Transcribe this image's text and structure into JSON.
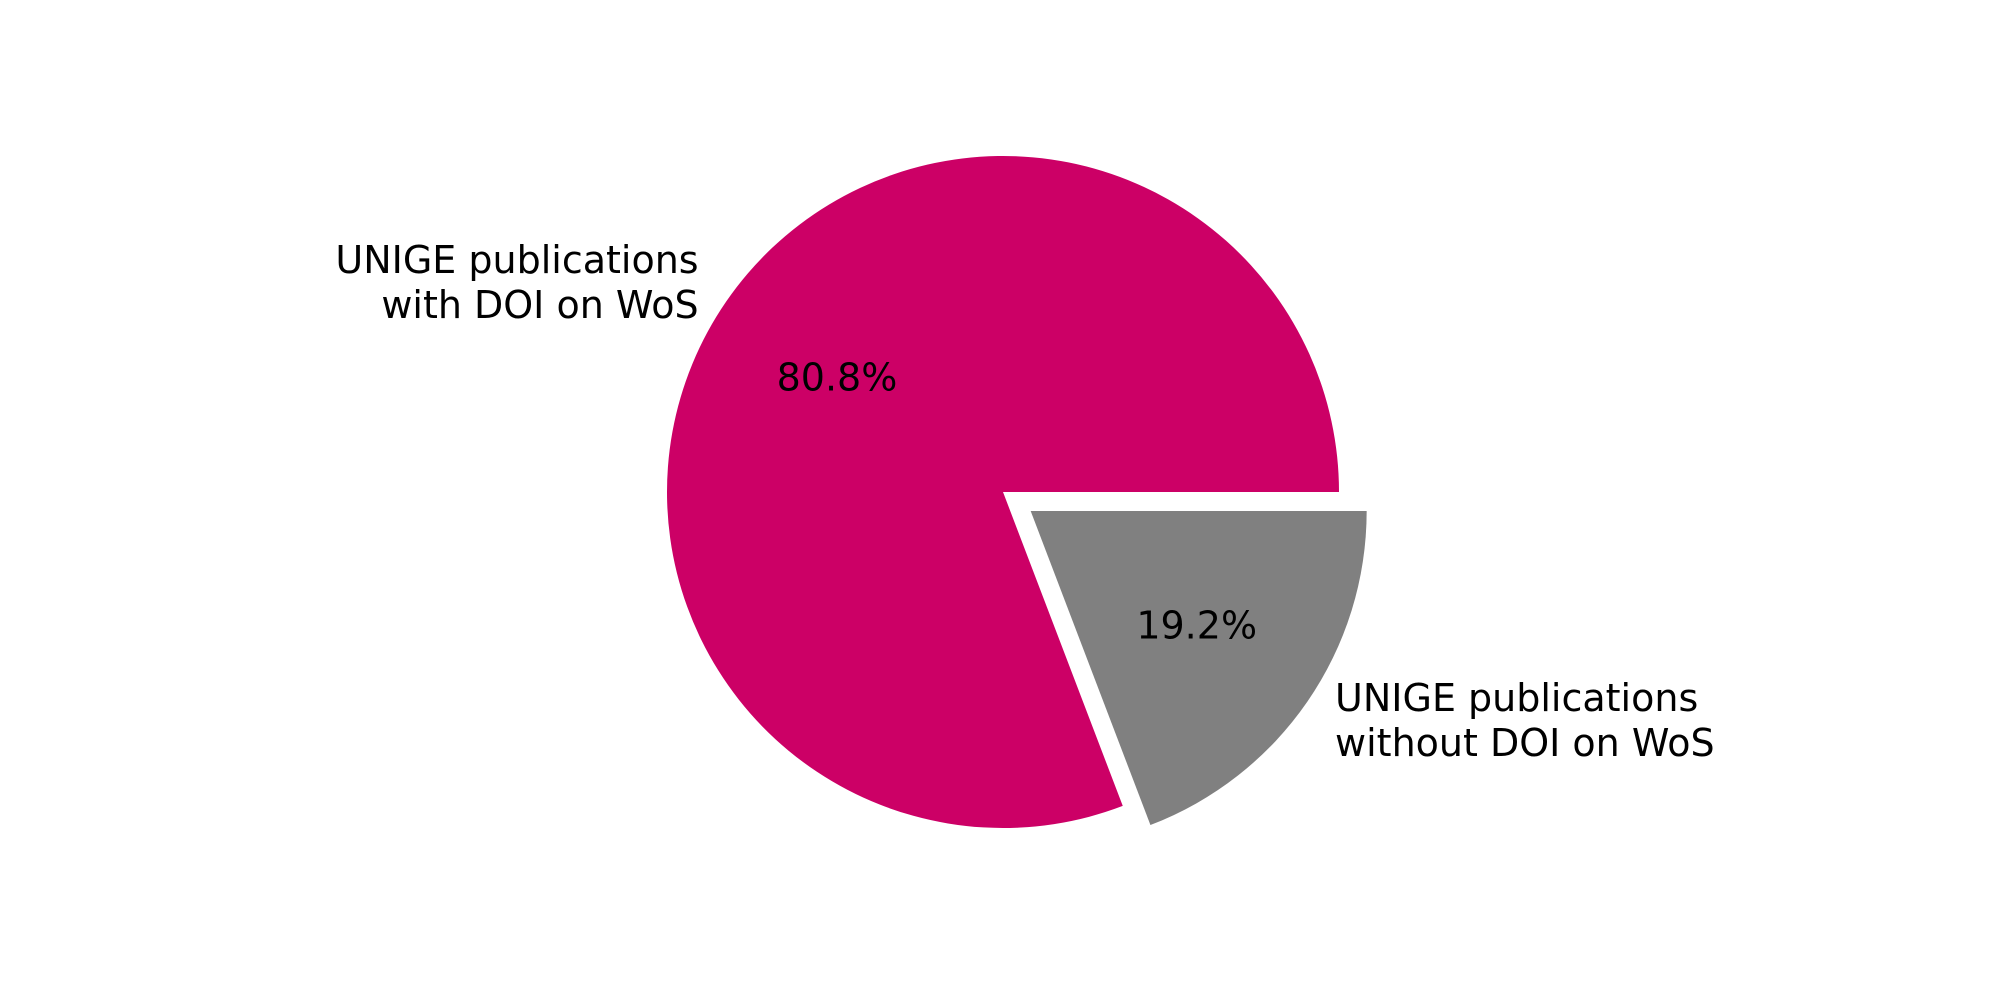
{
  "chart_data": {
    "type": "pie",
    "title": "",
    "slices": [
      {
        "label_lines": [
          "UNIGE publications",
          "with DOI on WoS"
        ],
        "value": 80.8,
        "pct_text": "80.8%",
        "color": "#cc0066",
        "exploded": false
      },
      {
        "label_lines": [
          "UNIGE publications",
          "without DOI on WoS"
        ],
        "value": 19.2,
        "pct_text": "19.2%",
        "color": "#808080",
        "exploded": true
      }
    ],
    "start_angle_deg": 0,
    "direction": "counterclockwise",
    "legend": "none"
  }
}
